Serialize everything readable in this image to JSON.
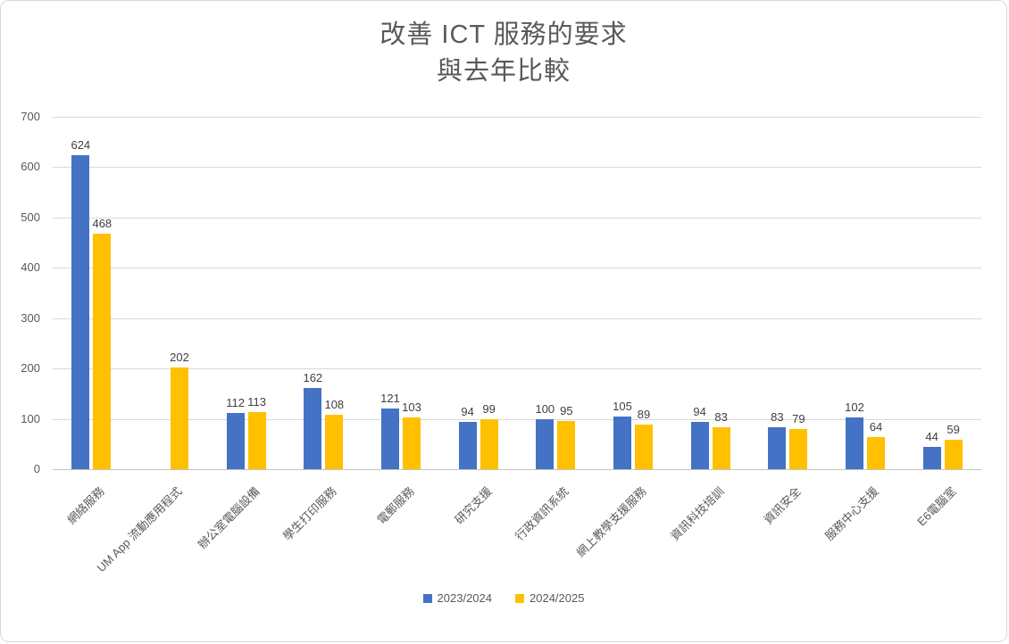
{
  "title": {
    "line1": "改善 ICT 服務的要求",
    "line2": "與去年比較"
  },
  "chart_data": {
    "type": "bar",
    "title": "改善 ICT 服務的要求 與去年比較",
    "categories": [
      "網絡服務",
      "UM App 流動應用程式",
      "辦公室電腦設備",
      "學生打印服務",
      "電郵服務",
      "研究支援",
      "行政資訊系統",
      "網上教學支援服務",
      "資訊科技培訓",
      "資訊安全",
      "服務中心支援",
      "E6電腦室"
    ],
    "series": [
      {
        "name": "2023/2024",
        "color": "#4472C4",
        "values": [
          624,
          null,
          112,
          162,
          121,
          94,
          100,
          105,
          94,
          83,
          102,
          44
        ]
      },
      {
        "name": "2024/2025",
        "color": "#FFC000",
        "values": [
          468,
          202,
          113,
          108,
          103,
          99,
          95,
          89,
          83,
          79,
          64,
          59
        ]
      }
    ],
    "ylim": [
      0,
      700
    ],
    "ytick_step": 100,
    "grid": true,
    "legend_position": "bottom",
    "data_labels": true
  },
  "colors": {
    "grid": "#d9d9d9",
    "axis_text": "#595959",
    "title_text": "#595959",
    "data_label_text": "#404040"
  }
}
